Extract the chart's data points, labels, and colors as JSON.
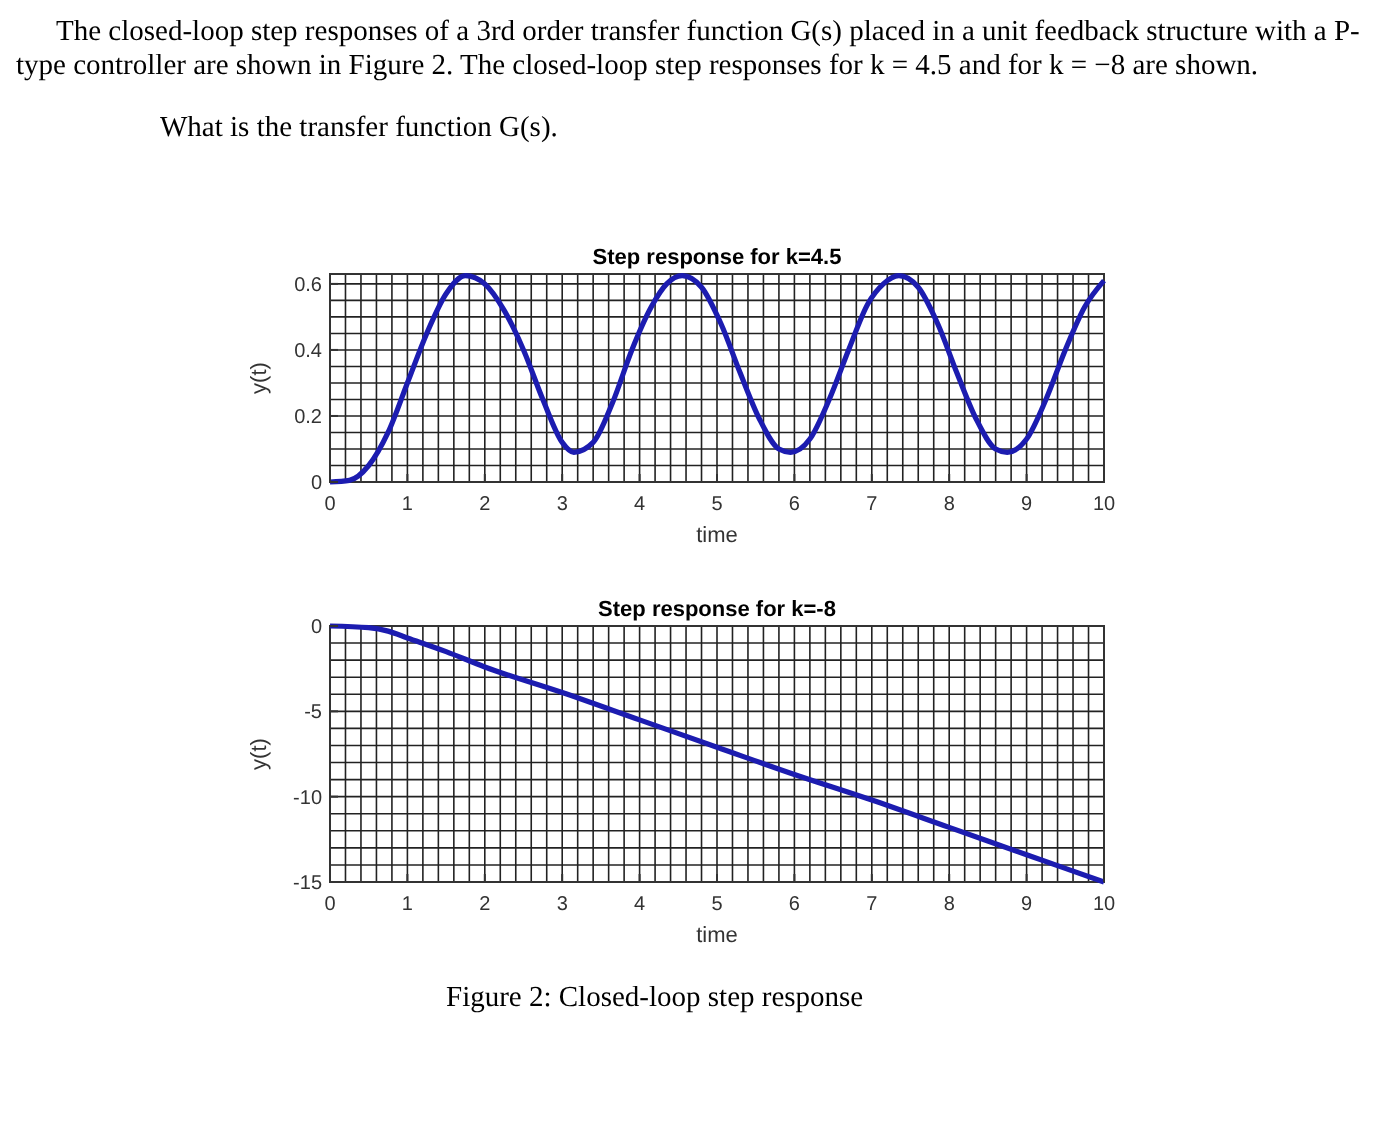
{
  "chart_data": [
    {
      "type": "line",
      "title": "Step response for k=4.5",
      "xlabel": "time",
      "ylabel": "y(t)",
      "annotations": [
        "The closed-loop step responses of a 3rd order transfer function G(s) placed in a unit feedback structure with a P-type controller are shown in Figure 2. The closed-loop step responses for k = 4.5 and for k = −8 are shown.",
        "What is the transfer function G(s)."
      ],
      "x": [
        0,
        0.25,
        0.5,
        0.75,
        1,
        1.25,
        1.5,
        1.75,
        2,
        2.25,
        2.5,
        2.75,
        3,
        3.15,
        3.4,
        3.65,
        3.9,
        4.15,
        4.35,
        4.55,
        4.8,
        5.05,
        5.3,
        5.55,
        5.8,
        5.95,
        6.2,
        6.45,
        6.7,
        6.95,
        7.15,
        7.35,
        7.6,
        7.85,
        8.1,
        8.35,
        8.6,
        8.75,
        9,
        9.25,
        9.5,
        9.75,
        10
      ],
      "series": [
        {
          "color": "#1c1cb0",
          "values": [
            0,
            0.005,
            0.05,
            0.15,
            0.3,
            0.45,
            0.57,
            0.625,
            0.6,
            0.52,
            0.4,
            0.25,
            0.12,
            0.09,
            0.12,
            0.24,
            0.4,
            0.53,
            0.6,
            0.625,
            0.59,
            0.48,
            0.33,
            0.19,
            0.1,
            0.09,
            0.13,
            0.25,
            0.4,
            0.54,
            0.6,
            0.625,
            0.59,
            0.48,
            0.33,
            0.19,
            0.1,
            0.09,
            0.13,
            0.25,
            0.4,
            0.53,
            0.61
          ]
        }
      ],
      "xlim": [
        0,
        10
      ],
      "xticks": [
        0,
        1,
        2,
        3,
        4,
        5,
        6,
        7,
        8,
        9,
        10
      ],
      "ylim": [
        0,
        0.63
      ],
      "yticks": [
        0,
        0.2,
        0.4,
        0.6
      ],
      "grid": true
    },
    {
      "type": "line",
      "title": "Step response for k=-8",
      "xlabel": "time",
      "ylabel": "y(t)",
      "annotations": [
        "Figure 2: Closed-loop step response"
      ],
      "x": [
        0,
        0.5,
        0.75,
        1,
        1.5,
        2,
        3,
        4,
        5,
        6,
        7,
        8,
        9,
        10
      ],
      "series": [
        {
          "color": "#1c1cb0",
          "values": [
            0,
            -0.1,
            -0.3,
            -0.7,
            -1.5,
            -2.4,
            -3.9,
            -5.5,
            -7.1,
            -8.7,
            -10.2,
            -11.8,
            -13.4,
            -15
          ]
        }
      ],
      "xlim": [
        0,
        10
      ],
      "xticks": [
        0,
        1,
        2,
        3,
        4,
        5,
        6,
        7,
        8,
        9,
        10
      ],
      "ylim": [
        -15,
        0
      ],
      "yticks": [
        -15,
        -10,
        -5,
        0
      ],
      "grid": true
    }
  ]
}
